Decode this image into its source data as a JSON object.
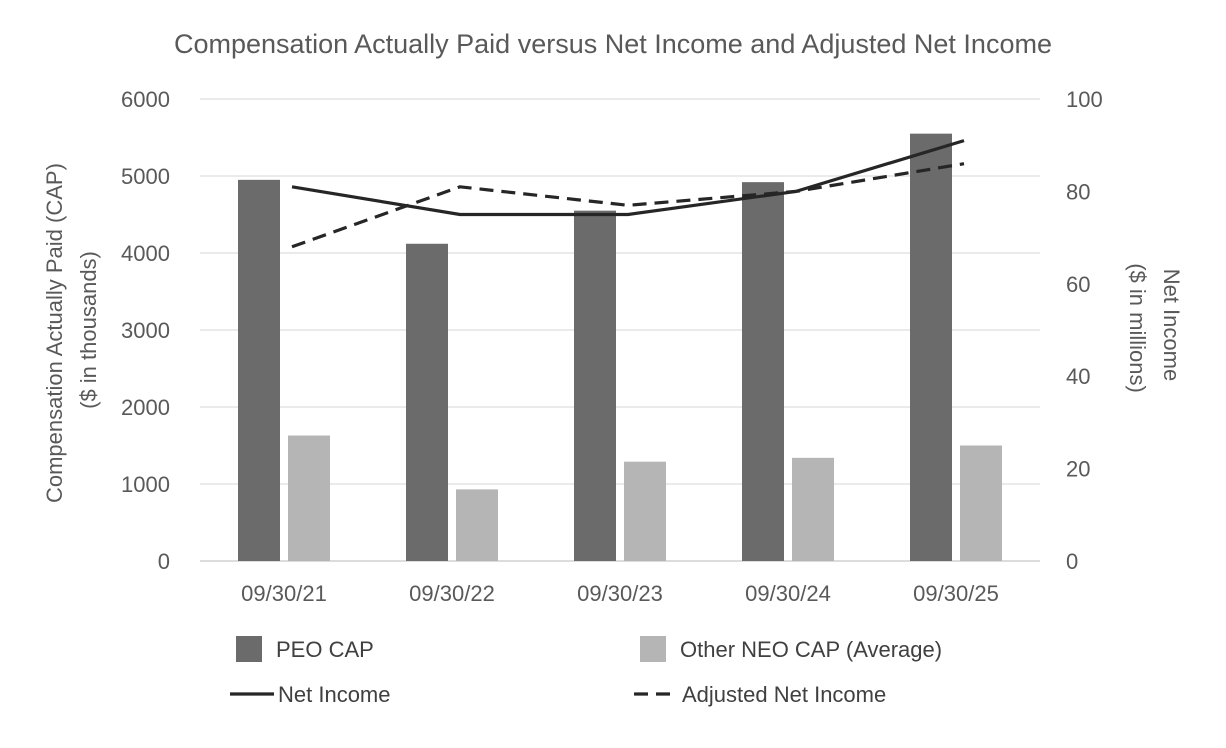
{
  "chart_data": {
    "type": "bar",
    "title": "Compensation Actually Paid versus Net Income and Adjusted Net Income",
    "categories": [
      "09/30/21",
      "09/30/22",
      "09/30/23",
      "09/30/24",
      "09/30/25"
    ],
    "ylabel": [
      "Compensation Actually Paid (CAP)",
      "($ in thousands)"
    ],
    "y2label": [
      "Net Income",
      "($ in millions)"
    ],
    "ylim": [
      0,
      6000
    ],
    "y_ticks": [
      "0",
      "1000",
      "2000",
      "3000",
      "4000",
      "5000",
      "6000"
    ],
    "y2lim": [
      0,
      100
    ],
    "y2_ticks": [
      "0",
      "20",
      "40",
      "60",
      "80",
      "100"
    ],
    "grid": true,
    "legend_position": "bottom",
    "series": [
      {
        "name": "PEO CAP",
        "kind": "bar",
        "axis": "left",
        "color": "#6b6b6b",
        "values": [
          4950,
          4120,
          4550,
          4920,
          5550
        ]
      },
      {
        "name": "Other NEO CAP (Average)",
        "kind": "bar",
        "axis": "left",
        "color": "#b5b5b5",
        "values": [
          1630,
          930,
          1290,
          1340,
          1500
        ]
      },
      {
        "name": "Net Income",
        "kind": "line",
        "axis": "right",
        "color": "#262626",
        "dash": "solid",
        "values": [
          81,
          75,
          75,
          80,
          91
        ]
      },
      {
        "name": "Adjusted Net Income",
        "kind": "line",
        "axis": "right",
        "color": "#262626",
        "dash": "dashed",
        "values": [
          68,
          81,
          77,
          80,
          86
        ]
      }
    ]
  }
}
